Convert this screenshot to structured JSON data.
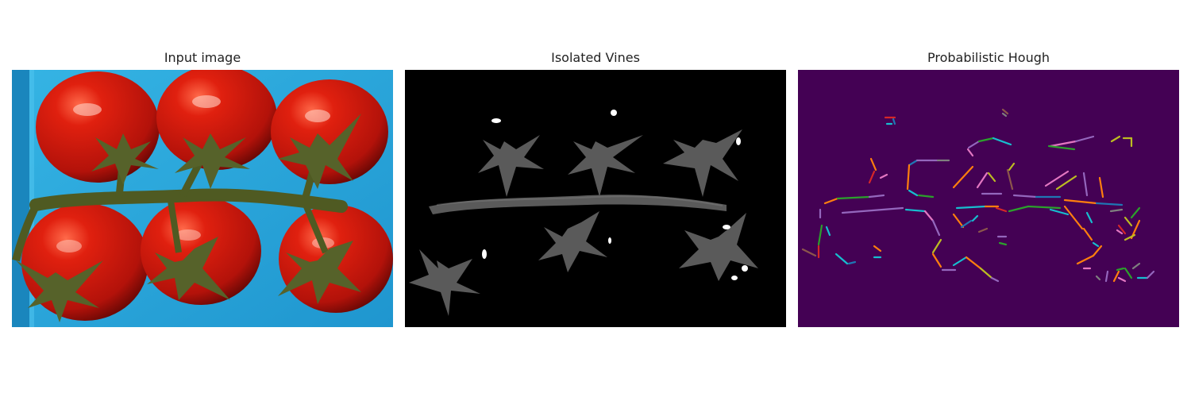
{
  "panels": [
    {
      "title": "Input image"
    },
    {
      "title": "Isolated Vines"
    },
    {
      "title": "Probabilistic Hough"
    }
  ],
  "colors": {
    "sky_blue": "#29a6d9",
    "tomato_red": "#c2140c",
    "vine_green": "#4f5a22",
    "hough_background": "#440154"
  }
}
